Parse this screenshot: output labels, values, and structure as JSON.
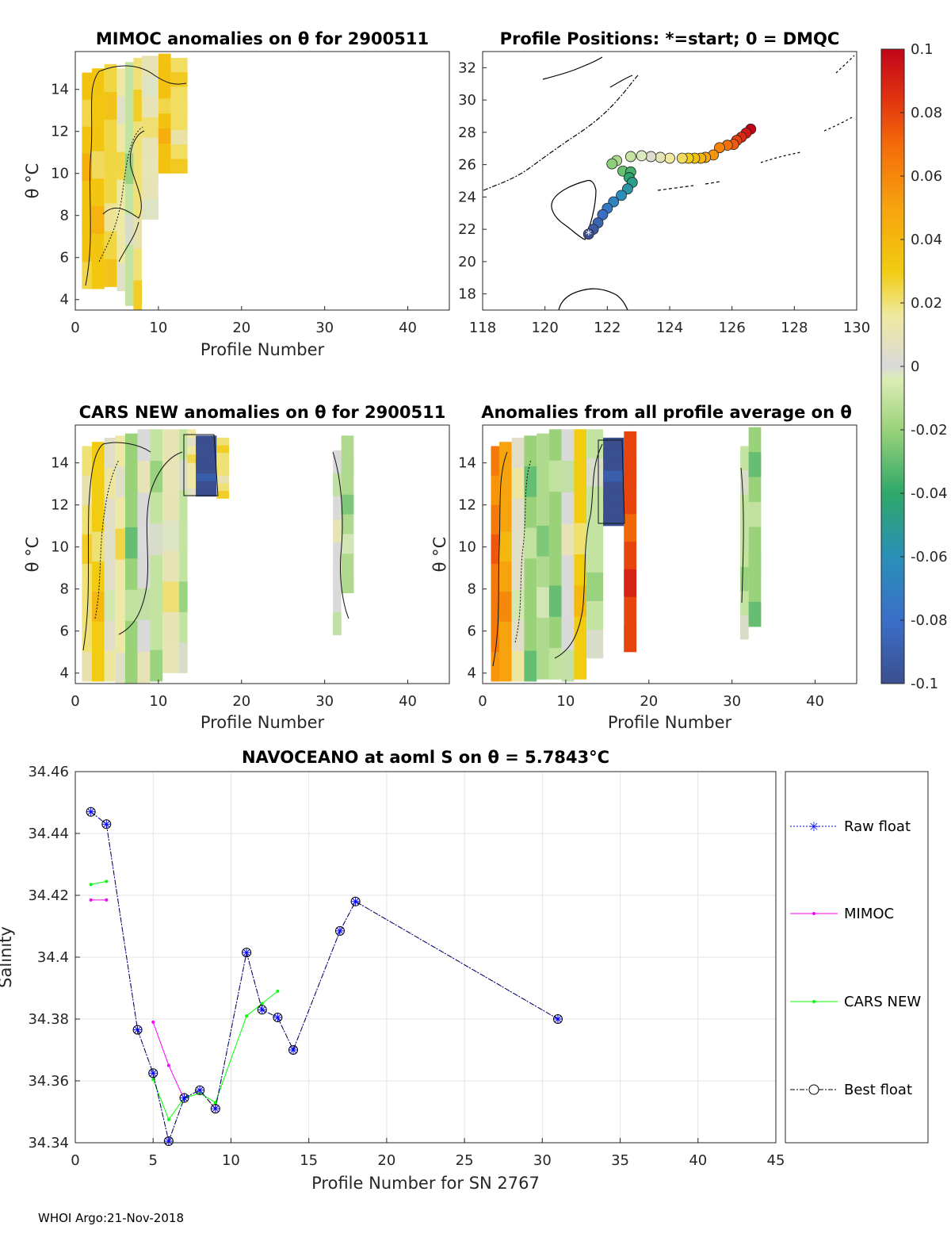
{
  "footer": "WHOI Argo:21-Nov-2018",
  "chart_data": [
    {
      "type": "heatmap",
      "title": "MIMOC anomalies on θ  for 2900511",
      "xlabel": "Profile Number",
      "ylabel": "θ °C",
      "xlim": [
        0,
        45
      ],
      "ylim": [
        3.5,
        15.8
      ],
      "xticks": [
        "0",
        "10",
        "20",
        "30",
        "40"
      ],
      "yticks": [
        "4",
        "6",
        "8",
        "10",
        "12",
        "14"
      ],
      "columns": [
        {
          "x0": 0.8,
          "x1": 2.0,
          "ymin": 4.5,
          "ymax": 14.8,
          "anom": 0.035
        },
        {
          "x0": 2.0,
          "x1": 3.5,
          "ymin": 4.5,
          "ymax": 15.0,
          "anom": 0.033
        },
        {
          "x0": 3.5,
          "x1": 5.0,
          "ymin": 4.6,
          "ymax": 15.2,
          "anom": 0.025
        },
        {
          "x0": 5.0,
          "x1": 6.0,
          "ymin": 4.4,
          "ymax": 15.0,
          "anom": 0.015
        },
        {
          "x0": 6.0,
          "x1": 7.0,
          "ymin": 3.7,
          "ymax": 15.3,
          "anom": -0.01
        },
        {
          "x0": 7.0,
          "x1": 8.0,
          "ymin": 3.4,
          "ymax": 15.5,
          "anom": 0.02
        },
        {
          "x0": 8.0,
          "x1": 10.0,
          "ymin": 7.8,
          "ymax": 15.6,
          "anom": 0.01
        },
        {
          "x0": 10.0,
          "x1": 11.5,
          "ymin": 10.0,
          "ymax": 15.7,
          "anom": 0.035
        },
        {
          "x0": 11.5,
          "x1": 13.5,
          "ymin": 10.0,
          "ymax": 15.5,
          "anom": 0.022
        }
      ]
    },
    {
      "type": "scatter",
      "title": "Profile Positions: *=start; 0 = DMQC",
      "xlim": [
        118,
        130
      ],
      "ylim": [
        17,
        33
      ],
      "xticks": [
        "118",
        "120",
        "122",
        "124",
        "126",
        "128",
        "130"
      ],
      "yticks": [
        "18",
        "20",
        "22",
        "24",
        "26",
        "28",
        "30",
        "32"
      ],
      "start_marker": "*",
      "points": [
        {
          "lon": 121.4,
          "lat": 21.7
        },
        {
          "lon": 121.55,
          "lat": 22.0
        },
        {
          "lon": 121.7,
          "lat": 22.4
        },
        {
          "lon": 121.85,
          "lat": 22.9
        },
        {
          "lon": 122.0,
          "lat": 23.3
        },
        {
          "lon": 122.2,
          "lat": 23.7
        },
        {
          "lon": 122.45,
          "lat": 24.1
        },
        {
          "lon": 122.65,
          "lat": 24.5
        },
        {
          "lon": 122.8,
          "lat": 24.9
        },
        {
          "lon": 122.7,
          "lat": 25.2
        },
        {
          "lon": 122.75,
          "lat": 25.55
        },
        {
          "lon": 122.5,
          "lat": 25.6
        },
        {
          "lon": 122.15,
          "lat": 26.05
        },
        {
          "lon": 122.3,
          "lat": 26.25
        },
        {
          "lon": 122.75,
          "lat": 26.5
        },
        {
          "lon": 123.1,
          "lat": 26.55
        },
        {
          "lon": 123.4,
          "lat": 26.5
        },
        {
          "lon": 123.7,
          "lat": 26.45
        },
        {
          "lon": 124.0,
          "lat": 26.4
        },
        {
          "lon": 124.4,
          "lat": 26.4
        },
        {
          "lon": 124.6,
          "lat": 26.4
        },
        {
          "lon": 124.8,
          "lat": 26.4
        },
        {
          "lon": 125.0,
          "lat": 26.4
        },
        {
          "lon": 125.15,
          "lat": 26.45
        },
        {
          "lon": 125.4,
          "lat": 26.6
        },
        {
          "lon": 125.6,
          "lat": 27.05
        },
        {
          "lon": 125.85,
          "lat": 27.2
        },
        {
          "lon": 126.05,
          "lat": 27.25
        },
        {
          "lon": 126.15,
          "lat": 27.5
        },
        {
          "lon": 126.3,
          "lat": 27.7
        },
        {
          "lon": 126.45,
          "lat": 27.95
        },
        {
          "lon": 126.6,
          "lat": 28.2
        }
      ]
    },
    {
      "type": "heatmap",
      "title": "CARS NEW anomalies on θ for 2900511",
      "xlabel": "Profile Number",
      "ylabel": "θ °C",
      "xlim": [
        0,
        45
      ],
      "ylim": [
        3.5,
        15.8
      ],
      "xticks": [
        "0",
        "10",
        "20",
        "30",
        "40"
      ],
      "yticks": [
        "4",
        "6",
        "8",
        "10",
        "12",
        "14"
      ],
      "columns": [
        {
          "x0": 0.8,
          "x1": 2.0,
          "ymin": 3.6,
          "ymax": 14.8,
          "anom": 0.02
        },
        {
          "x0": 2.0,
          "x1": 3.5,
          "ymin": 3.6,
          "ymax": 15.0,
          "anom": 0.03
        },
        {
          "x0": 3.5,
          "x1": 4.8,
          "ymin": 3.6,
          "ymax": 15.2,
          "anom": 0.005
        },
        {
          "x0": 4.8,
          "x1": 6.0,
          "ymin": 3.5,
          "ymax": 15.3,
          "anom": 0.015
        },
        {
          "x0": 6.0,
          "x1": 7.5,
          "ymin": 3.5,
          "ymax": 15.4,
          "anom": -0.02
        },
        {
          "x0": 7.5,
          "x1": 9.0,
          "ymin": 3.5,
          "ymax": 15.6,
          "anom": 0.0
        },
        {
          "x0": 9.0,
          "x1": 10.5,
          "ymin": 3.6,
          "ymax": 15.6,
          "anom": -0.01
        },
        {
          "x0": 10.5,
          "x1": 12.5,
          "ymin": 4.0,
          "ymax": 15.6,
          "anom": 0.01
        },
        {
          "x0": 12.5,
          "x1": 13.5,
          "ymin": 4.0,
          "ymax": 15.6,
          "anom": -0.01
        },
        {
          "x0": 13.5,
          "x1": 14.5,
          "ymin": 12.4,
          "ymax": 15.6,
          "anom": 0.015
        },
        {
          "x0": 14.5,
          "x1": 17.0,
          "ymin": 12.4,
          "ymax": 15.3,
          "anom": -0.1
        },
        {
          "x0": 17.0,
          "x1": 18.5,
          "ymin": 12.3,
          "ymax": 15.2,
          "anom": 0.02
        },
        {
          "x0": 31.0,
          "x1": 32.0,
          "ymin": 5.8,
          "ymax": 14.6,
          "anom": 0.0
        },
        {
          "x0": 32.0,
          "x1": 33.5,
          "ymin": 7.8,
          "ymax": 15.3,
          "anom": -0.015
        }
      ]
    },
    {
      "type": "heatmap",
      "title": "Anomalies from all profile average on θ",
      "xlabel": "Profile Number",
      "ylabel": "θ °C",
      "xlim": [
        0,
        45
      ],
      "ylim": [
        3.5,
        15.8
      ],
      "xticks": [
        "0",
        "10",
        "20",
        "30",
        "40"
      ],
      "yticks": [
        "4",
        "6",
        "8",
        "10",
        "12",
        "14"
      ],
      "columns": [
        {
          "x0": 1.0,
          "x1": 2.0,
          "ymin": 3.6,
          "ymax": 14.8,
          "anom": 0.065
        },
        {
          "x0": 2.0,
          "x1": 3.5,
          "ymin": 3.6,
          "ymax": 15.0,
          "anom": 0.05
        },
        {
          "x0": 3.5,
          "x1": 5.0,
          "ymin": 3.6,
          "ymax": 15.2,
          "anom": 0.005
        },
        {
          "x0": 5.0,
          "x1": 6.5,
          "ymin": 3.6,
          "ymax": 15.3,
          "anom": -0.02
        },
        {
          "x0": 6.5,
          "x1": 8.0,
          "ymin": 3.7,
          "ymax": 15.4,
          "anom": -0.015
        },
        {
          "x0": 8.0,
          "x1": 9.5,
          "ymin": 3.7,
          "ymax": 15.6,
          "anom": -0.02
        },
        {
          "x0": 9.5,
          "x1": 11.0,
          "ymin": 3.6,
          "ymax": 15.6,
          "anom": 0.0
        },
        {
          "x0": 11.0,
          "x1": 12.5,
          "ymin": 3.7,
          "ymax": 15.6,
          "anom": 0.03
        },
        {
          "x0": 12.5,
          "x1": 14.5,
          "ymin": 4.7,
          "ymax": 15.6,
          "anom": -0.01
        },
        {
          "x0": 14.5,
          "x1": 17.0,
          "ymin": 11.0,
          "ymax": 15.2,
          "anom": -0.1
        },
        {
          "x0": 17.0,
          "x1": 18.5,
          "ymin": 5.0,
          "ymax": 15.5,
          "anom": 0.08
        },
        {
          "x0": 31.0,
          "x1": 32.0,
          "ymin": 5.6,
          "ymax": 14.8,
          "anom": -0.01
        },
        {
          "x0": 32.0,
          "x1": 33.5,
          "ymin": 6.2,
          "ymax": 15.7,
          "anom": -0.02
        }
      ]
    },
    {
      "type": "line",
      "title": "NAVOCEANO at aoml S on θ = 5.7843°C",
      "xlabel": "Profile Number for SN 2767",
      "ylabel": "Salinity",
      "xlim": [
        0,
        45
      ],
      "ylim": [
        34.34,
        34.46
      ],
      "xticks": [
        "0",
        "5",
        "10",
        "15",
        "20",
        "25",
        "30",
        "35",
        "40",
        "45"
      ],
      "yticks": [
        "34.34",
        "34.36",
        "34.38",
        "34.4",
        "34.42",
        "34.44",
        "34.46"
      ],
      "grid": true,
      "legend_position": "outside-right",
      "series": [
        {
          "name": "Raw float",
          "color": "#0000ff",
          "x": [
            1,
            2,
            4,
            5,
            6,
            7,
            8,
            9,
            11,
            12,
            13,
            14,
            17,
            18,
            31
          ],
          "y": [
            34.447,
            34.443,
            34.3765,
            34.3625,
            34.3405,
            34.3545,
            34.357,
            34.351,
            34.4015,
            34.383,
            34.3805,
            34.37,
            34.4085,
            34.418,
            34.38
          ]
        },
        {
          "name": "MIMOC",
          "color": "#ff00ff",
          "segments": [
            {
              "x": [
                1,
                2
              ],
              "y": [
                34.4185,
                34.4185
              ]
            },
            {
              "x": [
                5,
                6,
                7
              ],
              "y": [
                34.379,
                34.365,
                34.354
              ]
            }
          ]
        },
        {
          "name": "CARS NEW",
          "color": "#00ff00",
          "segments": [
            {
              "x": [
                1,
                2
              ],
              "y": [
                34.4235,
                34.4245
              ]
            },
            {
              "x": [
                5,
                6,
                7,
                8,
                9,
                11,
                12,
                13
              ],
              "y": [
                34.3605,
                34.3475,
                34.3545,
                34.356,
                34.353,
                34.381,
                34.385,
                34.389
              ]
            }
          ]
        },
        {
          "name": "Best float",
          "color": "#000000",
          "x": [
            1,
            2,
            4,
            5,
            6,
            7,
            8,
            9,
            11,
            12,
            13,
            14,
            17,
            18,
            31
          ],
          "y": [
            34.447,
            34.443,
            34.3765,
            34.3625,
            34.3405,
            34.3545,
            34.357,
            34.351,
            34.4015,
            34.383,
            34.3805,
            34.37,
            34.4085,
            34.418,
            34.38
          ]
        }
      ]
    }
  ],
  "colorbar": {
    "min": -0.1,
    "max": 0.1,
    "tick_labels": [
      "0.1",
      "0.08",
      "0.06",
      "0.04",
      "0.02",
      "0",
      "-0.02",
      "-0.04",
      "-0.06",
      "-0.08",
      "-0.1"
    ]
  }
}
